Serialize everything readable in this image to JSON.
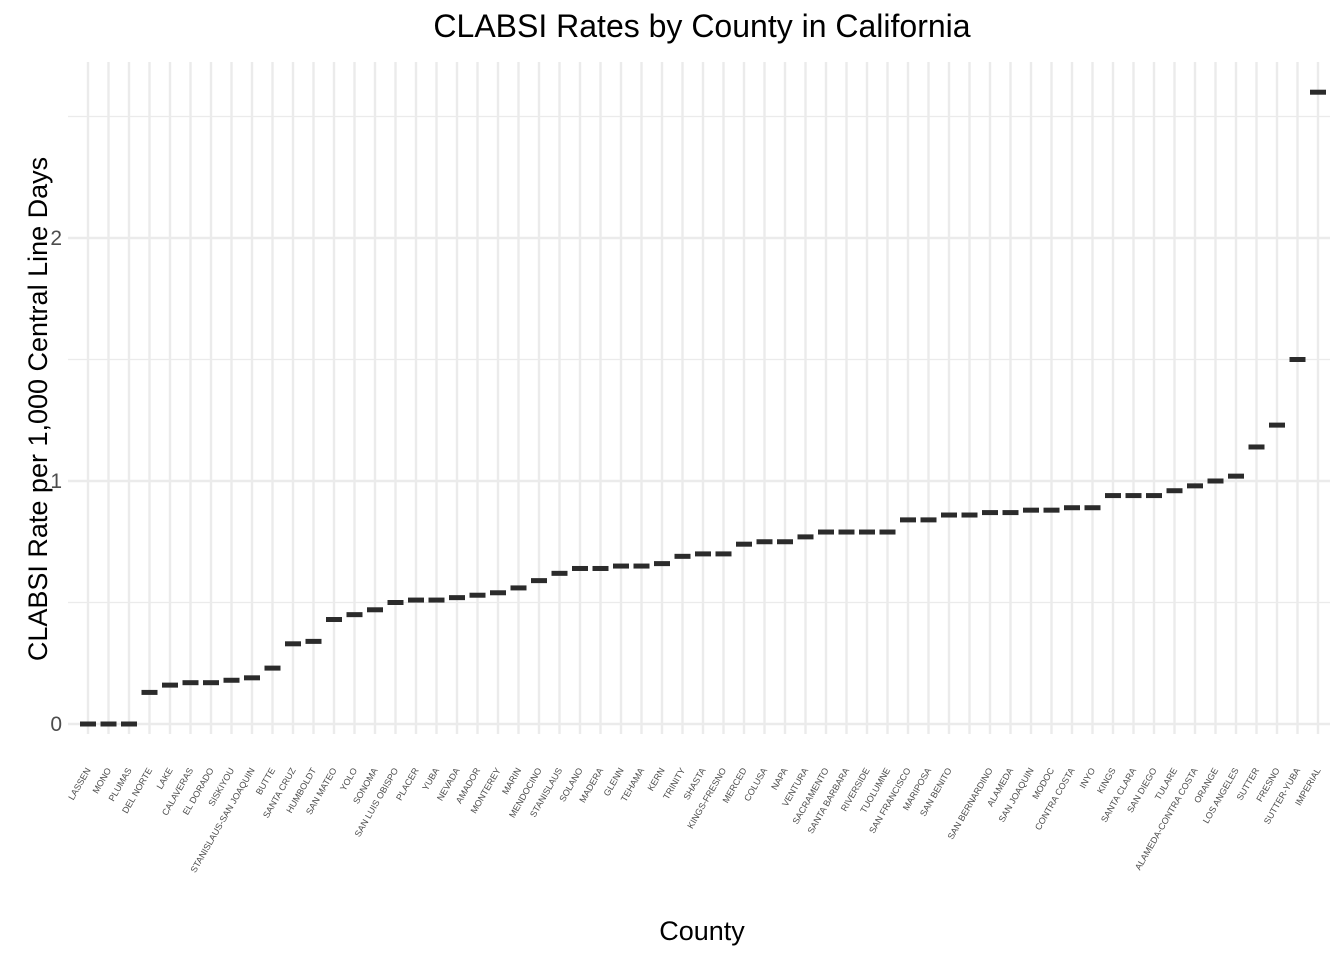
{
  "chart_data": {
    "type": "bar",
    "title": "CLABSI Rates by County in California",
    "xlabel": "County",
    "ylabel": "CLABSI Rate per 1,000 Central Line Days",
    "ylim": [
      -0.02,
      2.72
    ],
    "yticks": [
      0,
      1,
      2
    ],
    "grid": true,
    "legend": "none",
    "colors": {
      "mark": "#2b2b2b",
      "grid": "#ebebeb",
      "tick_text": "#4d4d4d"
    },
    "categories": [
      "LASSEN",
      "MONO",
      "PLUMAS",
      "DEL NORTE",
      "LAKE",
      "CALAVERAS",
      "EL DORADO",
      "SISKIYOU",
      "STANISLAUS-SAN JOAQUIN",
      "BUTTE",
      "SANTA CRUZ",
      "HUMBOLDT",
      "SAN MATEO",
      "YOLO",
      "SONOMA",
      "SAN LUIS OBISPO",
      "PLACER",
      "YUBA",
      "NEVADA",
      "AMADOR",
      "MONTEREY",
      "MARIN",
      "MENDOCINO",
      "STANISLAUS",
      "SOLANO",
      "MADERA",
      "GLENN",
      "TEHAMA",
      "KERN",
      "TRINITY",
      "SHASTA",
      "KINGS-FRESNO",
      "MERCED",
      "COLUSA",
      "NAPA",
      "VENTURA",
      "SACRAMENTO",
      "SANTA BARBARA",
      "RIVERSIDE",
      "TUOLUMNE",
      "SAN FRANCISCO",
      "MARIPOSA",
      "SAN BENITO",
      "",
      "SAN BERNARDINO",
      "ALAMEDA",
      "SAN JOAQUIN",
      "MODOC",
      "CONTRA COSTA",
      "INYO",
      "KINGS",
      "SANTA CLARA",
      "SAN DIEGO",
      "TULARE",
      "ALAMEDA-CONTRA COSTA",
      "ORANGE",
      "LOS ANGELES",
      "SUTTER",
      "FRESNO",
      "SUTTER-YUBA",
      "IMPERIAL"
    ],
    "values": [
      0,
      0,
      0,
      0.13,
      0.16,
      0.17,
      0.17,
      0.18,
      0.19,
      0.23,
      0.33,
      0.34,
      0.43,
      0.45,
      0.47,
      0.5,
      0.51,
      0.51,
      0.52,
      0.53,
      0.54,
      0.56,
      0.59,
      0.62,
      0.64,
      0.64,
      0.65,
      0.65,
      0.66,
      0.69,
      0.7,
      0.7,
      0.74,
      0.75,
      0.75,
      0.77,
      0.79,
      0.79,
      0.79,
      0.79,
      0.84,
      0.84,
      0.86,
      0.86,
      0.87,
      0.87,
      0.88,
      0.88,
      0.89,
      0.89,
      0.94,
      0.94,
      0.94,
      0.96,
      0.98,
      1.0,
      1.02,
      1.14,
      1.23,
      1.5,
      2.6
    ]
  }
}
